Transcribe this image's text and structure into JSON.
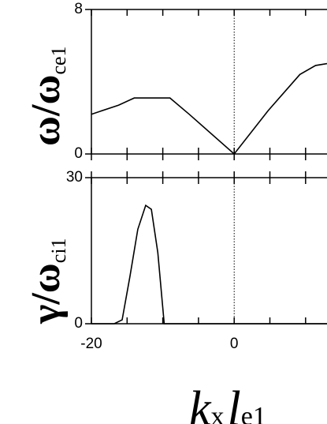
{
  "chart_data": [
    {
      "type": "line",
      "ylabel": {
        "main": "ω/ω",
        "sub": "ce1"
      },
      "xlim": [
        -20,
        13
      ],
      "ylim": [
        0,
        8
      ],
      "yticks": [
        0,
        8
      ],
      "xtick_marks": [
        -20,
        -15,
        -10,
        -5,
        0,
        5,
        10
      ],
      "zero_line": 0,
      "series": [
        {
          "name": "omega",
          "color": "#000000",
          "x": [
            -20,
            -16.2,
            -14,
            -9,
            -6.3,
            0,
            4.75,
            9.2,
            11.4,
            13
          ],
          "values": [
            2.2,
            2.7,
            3.1,
            3.1,
            2.2,
            0,
            2.4,
            4.4,
            4.9,
            5.0
          ]
        }
      ]
    },
    {
      "type": "line",
      "ylabel": {
        "main": "γ/ω",
        "sub": "ci1"
      },
      "xlabel": {
        "k": "k",
        "x": "x",
        "l": "l",
        "e1": "e1"
      },
      "xlim": [
        -20,
        13
      ],
      "ylim": [
        0,
        30
      ],
      "yticks": [
        0,
        30
      ],
      "xticks": [
        -20,
        0
      ],
      "xtick_marks": [
        -15,
        -10,
        -5,
        5,
        10
      ],
      "zero_line": 0,
      "series": [
        {
          "name": "gamma",
          "color": "#000000",
          "x": [
            -20,
            -16.8,
            -15.7,
            -14.6,
            -13.5,
            -12.4,
            -11.6,
            -10.7,
            -9.8,
            13
          ],
          "values": [
            0,
            0,
            0.8,
            9.7,
            19.4,
            24.3,
            23.5,
            14.6,
            0,
            0
          ]
        }
      ]
    }
  ]
}
